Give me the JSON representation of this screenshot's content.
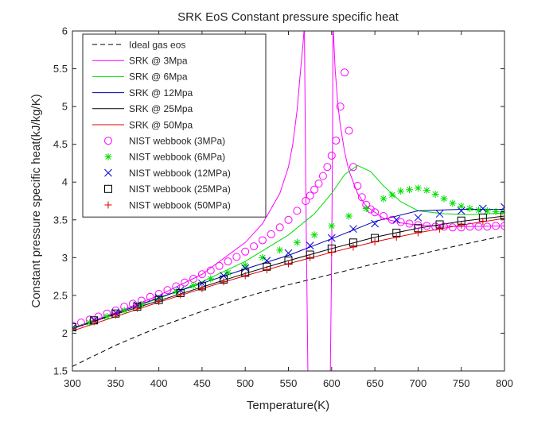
{
  "chart_data": {
    "type": "line",
    "title": "SRK EoS Constant pressure specific heat",
    "xlabel": "Temperature(K)",
    "ylabel": "Constant pressure specific heat(kJ/kg/K)",
    "xlim": [
      300,
      800
    ],
    "ylim": [
      1.5,
      6
    ],
    "xticks": [
      300,
      350,
      400,
      450,
      500,
      550,
      600,
      650,
      700,
      750,
      800
    ],
    "yticks": [
      1.5,
      2,
      2.5,
      3,
      3.5,
      4,
      4.5,
      5,
      5.5,
      6
    ],
    "xtick_labels": [
      "300",
      "350",
      "400",
      "450",
      "500",
      "550",
      "600",
      "650",
      "700",
      "750",
      "800"
    ],
    "ytick_labels": [
      "1.5",
      "2",
      "2.5",
      "3",
      "3.5",
      "4",
      "4.5",
      "5",
      "5.5",
      "6"
    ],
    "grid": false,
    "legend_position": "top-left",
    "series": [
      {
        "name": "Ideal gas eos",
        "kind": "line",
        "style": "dashed",
        "color": "#000000",
        "x": [
          300,
          350,
          400,
          450,
          500,
          550,
          600,
          650,
          700,
          750,
          800
        ],
        "y": [
          1.56,
          1.84,
          2.08,
          2.29,
          2.48,
          2.64,
          2.78,
          2.92,
          3.04,
          3.17,
          3.29
        ]
      },
      {
        "name": "SRK @ 3Mpa",
        "kind": "line",
        "style": "solid",
        "color": "#ff00ff",
        "segments": [
          {
            "x": [
              300,
              350,
              400,
              450,
              500,
              520,
              540,
              550,
              555,
              560,
              563,
              565,
              567,
              568
            ],
            "y": [
              2.07,
              2.27,
              2.5,
              2.78,
              3.2,
              3.45,
              3.85,
              4.2,
              4.5,
              4.95,
              5.35,
              5.6,
              5.85,
              6.0
            ]
          },
          {
            "x": [
              568.5,
              570,
              571,
              572,
              572.5
            ],
            "y": [
              6.0,
              4.0,
              3.0,
              2.0,
              1.5
            ]
          },
          {
            "x": [
              598.5,
              599,
              600,
              601,
              601.5
            ],
            "y": [
              1.5,
              2.0,
              3.0,
              4.5,
              6.0
            ]
          },
          {
            "x": [
              602,
              604,
              607,
              610,
              615,
              620,
              630,
              640,
              660,
              680,
              700,
              750,
              800
            ],
            "y": [
              6.0,
              5.5,
              5.05,
              4.75,
              4.4,
              4.15,
              3.85,
              3.68,
              3.52,
              3.46,
              3.43,
              3.41,
              3.42
            ]
          }
        ]
      },
      {
        "name": "SRK @ 6Mpa",
        "kind": "line",
        "style": "solid",
        "color": "#00dd00",
        "x": [
          300,
          350,
          400,
          450,
          500,
          550,
          580,
          600,
          615,
          630,
          645,
          660,
          680,
          700,
          730,
          760,
          800
        ],
        "y": [
          2.07,
          2.26,
          2.46,
          2.68,
          2.95,
          3.3,
          3.58,
          3.85,
          4.1,
          4.22,
          4.14,
          3.95,
          3.74,
          3.62,
          3.58,
          3.57,
          3.59
        ]
      },
      {
        "name": "SRK @ 12Mpa",
        "kind": "line",
        "style": "solid",
        "color": "#0000aa",
        "x": [
          300,
          350,
          400,
          450,
          500,
          550,
          600,
          650,
          700,
          750,
          800
        ],
        "y": [
          2.06,
          2.26,
          2.47,
          2.66,
          2.85,
          3.03,
          3.25,
          3.48,
          3.62,
          3.64,
          3.64
        ]
      },
      {
        "name": "SRK @ 25Mpa",
        "kind": "line",
        "style": "solid",
        "color": "#000000",
        "x": [
          300,
          350,
          400,
          450,
          500,
          550,
          600,
          650,
          700,
          750,
          800
        ],
        "y": [
          2.06,
          2.25,
          2.43,
          2.61,
          2.79,
          2.96,
          3.12,
          3.27,
          3.39,
          3.48,
          3.55
        ]
      },
      {
        "name": "SRK @ 50Mpa",
        "kind": "line",
        "style": "solid",
        "color": "#dd0000",
        "x": [
          300,
          350,
          400,
          450,
          500,
          550,
          600,
          650,
          700,
          750,
          800
        ],
        "y": [
          2.03,
          2.22,
          2.41,
          2.59,
          2.76,
          2.92,
          3.07,
          3.21,
          3.33,
          3.43,
          3.52
        ]
      },
      {
        "name": "NIST webbook (3MPa)",
        "kind": "marker",
        "marker": "circle",
        "color": "#ff00ff",
        "x": [
          300,
          310,
          320,
          330,
          340,
          350,
          360,
          370,
          380,
          390,
          400,
          410,
          420,
          430,
          440,
          450,
          460,
          470,
          480,
          490,
          500,
          510,
          520,
          530,
          540,
          550,
          560,
          570,
          575,
          580,
          585,
          590,
          595,
          600,
          605,
          610,
          615,
          620,
          625,
          630,
          635,
          640,
          645,
          650,
          660,
          670,
          680,
          690,
          700,
          710,
          720,
          730,
          740,
          750,
          760,
          770,
          780,
          790,
          800
        ],
        "y": [
          2.1,
          2.14,
          2.18,
          2.22,
          2.26,
          2.3,
          2.35,
          2.39,
          2.43,
          2.48,
          2.52,
          2.57,
          2.62,
          2.67,
          2.72,
          2.78,
          2.83,
          2.89,
          2.95,
          3.01,
          3.08,
          3.15,
          3.23,
          3.31,
          3.4,
          3.5,
          3.62,
          3.75,
          3.82,
          3.9,
          3.98,
          4.08,
          4.2,
          4.35,
          4.55,
          5.0,
          5.45,
          4.68,
          4.2,
          3.95,
          3.8,
          3.7,
          3.64,
          3.6,
          3.55,
          3.5,
          3.47,
          3.45,
          3.43,
          3.42,
          3.41,
          3.41,
          3.4,
          3.4,
          3.41,
          3.41,
          3.41,
          3.42,
          3.42
        ]
      },
      {
        "name": "NIST webbook (6MPa)",
        "kind": "marker",
        "marker": "asterisk",
        "color": "#00dd00",
        "x": [
          300,
          320,
          340,
          360,
          380,
          400,
          420,
          440,
          460,
          480,
          500,
          520,
          540,
          560,
          580,
          600,
          620,
          640,
          660,
          670,
          680,
          690,
          700,
          710,
          720,
          730,
          740,
          750,
          760,
          770,
          780,
          790,
          800
        ],
        "y": [
          2.06,
          2.14,
          2.22,
          2.3,
          2.38,
          2.46,
          2.55,
          2.63,
          2.72,
          2.8,
          2.9,
          3.0,
          3.1,
          3.2,
          3.3,
          3.42,
          3.55,
          3.65,
          3.78,
          3.83,
          3.88,
          3.9,
          3.92,
          3.89,
          3.84,
          3.78,
          3.72,
          3.68,
          3.65,
          3.63,
          3.62,
          3.61,
          3.6
        ]
      },
      {
        "name": "NIST webbook (12MPa)",
        "kind": "marker",
        "marker": "x",
        "color": "#0000dd",
        "x": [
          300,
          325,
          350,
          375,
          400,
          425,
          450,
          475,
          500,
          525,
          550,
          575,
          600,
          625,
          650,
          675,
          700,
          725,
          750,
          775,
          800
        ],
        "y": [
          2.07,
          2.17,
          2.27,
          2.37,
          2.47,
          2.57,
          2.66,
          2.76,
          2.86,
          2.96,
          3.06,
          3.16,
          3.26,
          3.38,
          3.45,
          3.5,
          3.53,
          3.58,
          3.62,
          3.65,
          3.67
        ]
      },
      {
        "name": "NIST webbook (25MPa)",
        "kind": "marker",
        "marker": "square",
        "color": "#000000",
        "x": [
          300,
          325,
          350,
          375,
          400,
          425,
          450,
          475,
          500,
          525,
          550,
          575,
          600,
          625,
          650,
          675,
          700,
          725,
          750,
          775,
          800
        ],
        "y": [
          2.08,
          2.17,
          2.26,
          2.35,
          2.44,
          2.53,
          2.62,
          2.71,
          2.8,
          2.88,
          2.96,
          3.04,
          3.12,
          3.2,
          3.26,
          3.33,
          3.39,
          3.44,
          3.49,
          3.53,
          3.56
        ]
      },
      {
        "name": "NIST webbook (50MPa)",
        "kind": "marker",
        "marker": "plus",
        "color": "#dd0000",
        "x": [
          300,
          325,
          350,
          375,
          400,
          425,
          450,
          475,
          500,
          525,
          550,
          575,
          600,
          625,
          650,
          675,
          700,
          725,
          750,
          775,
          800
        ],
        "y": [
          2.06,
          2.15,
          2.24,
          2.33,
          2.42,
          2.51,
          2.59,
          2.68,
          2.76,
          2.84,
          2.92,
          3.0,
          3.07,
          3.14,
          3.21,
          3.27,
          3.33,
          3.38,
          3.43,
          3.48,
          3.52
        ]
      }
    ]
  }
}
